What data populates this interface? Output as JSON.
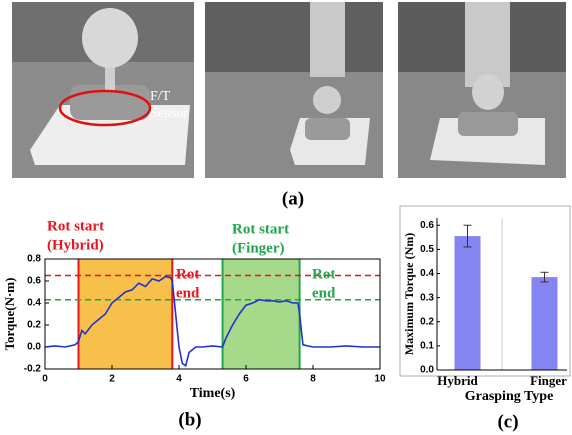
{
  "panel_labels": [
    "(a)",
    "(b)",
    "(c)"
  ],
  "photo_annotation": "F/T Sensor",
  "chart_data": [
    {
      "type": "line",
      "xlabel": "Time(s)",
      "ylabel": "Torque(N·m)",
      "x": [
        0,
        0.3,
        0.6,
        0.9,
        1.0,
        1.1,
        1.2,
        1.4,
        1.6,
        1.8,
        2.0,
        2.2,
        2.4,
        2.6,
        2.8,
        3.0,
        3.2,
        3.4,
        3.6,
        3.75,
        3.8,
        3.9,
        4.0,
        4.1,
        4.2,
        4.3,
        4.5,
        4.7,
        5.0,
        5.3,
        5.4,
        5.6,
        5.8,
        6.0,
        6.2,
        6.4,
        6.6,
        6.8,
        7.0,
        7.2,
        7.4,
        7.55,
        7.6,
        7.7,
        8.0,
        8.5,
        9.0,
        9.5,
        10
      ],
      "values": [
        0.0,
        0.01,
        0.0,
        0.02,
        0.05,
        0.15,
        0.12,
        0.2,
        0.25,
        0.3,
        0.4,
        0.45,
        0.5,
        0.52,
        0.58,
        0.55,
        0.62,
        0.6,
        0.64,
        0.63,
        0.6,
        0.3,
        0.0,
        -0.15,
        -0.17,
        -0.05,
        0.0,
        0.0,
        0.01,
        0.0,
        0.08,
        0.2,
        0.3,
        0.38,
        0.4,
        0.43,
        0.42,
        0.42,
        0.41,
        0.42,
        0.4,
        0.4,
        0.3,
        0.02,
        0.0,
        0.0,
        0.01,
        0.0,
        0.0
      ],
      "color": "#2233cc",
      "xlim": [
        0,
        10
      ],
      "xticks": [
        0,
        2,
        4,
        6,
        8,
        10
      ],
      "ylim": [
        -0.2,
        0.8
      ],
      "yticks": [
        -0.2,
        {
          "value": 0,
          "label": "0.0"
        },
        0.2,
        0.4,
        0.6,
        0.8
      ],
      "regions": [
        {
          "start": 1.0,
          "end": 3.8,
          "fill": "#f7c04a",
          "edge": "#e8141e"
        },
        {
          "start": 5.3,
          "end": 7.6,
          "fill": "#a6d98a",
          "edge": "#20a64a"
        }
      ],
      "hlines": [
        {
          "value": 0.65,
          "color": "#e8141e"
        },
        {
          "value": 0.43,
          "color": "#20a64a"
        }
      ],
      "annotations": [
        {
          "lines": [
            "Rot start",
            "(Hybrid)"
          ],
          "color": "#e8141e"
        },
        {
          "lines": [
            "Rot",
            "end"
          ],
          "color": "#e8141e"
        },
        {
          "lines": [
            "Rot start",
            "(Finger)"
          ],
          "color": "#20a64a"
        },
        {
          "lines": [
            "Rot",
            "end"
          ],
          "color": "#20a64a"
        }
      ]
    },
    {
      "type": "bar",
      "xlabel": "Grasping Type",
      "ylabel": "Maximum Torque (Nm)",
      "categories": [
        "Hybrid",
        "Finger"
      ],
      "values": [
        0.555,
        0.385
      ],
      "errors": [
        0.045,
        0.02
      ],
      "color": "#8484f2",
      "ylim": [
        0,
        0.63
      ],
      "yticks": [
        {
          "value": 0,
          "label": "0.0"
        },
        0.1,
        0.2,
        0.3,
        0.4,
        0.5,
        0.6
      ]
    }
  ]
}
